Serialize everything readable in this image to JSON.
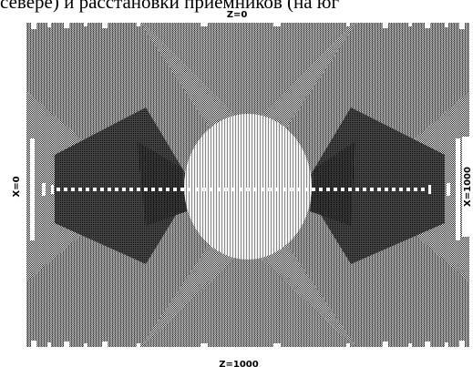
{
  "caption": "севере) и расстановки приемников (на юг",
  "labels": {
    "top": "Z=0",
    "bottom": "Z=1000",
    "left": "X=0",
    "right": "X=1000"
  },
  "colors": {
    "background": "#ffffff",
    "medium_gray": "#8a8a8a",
    "dark_gray": "#4a4a4a",
    "darker_gray": "#2e2e2e",
    "light_gray": "#cfcfcf",
    "black": "#000000",
    "white": "#ffffff"
  }
}
